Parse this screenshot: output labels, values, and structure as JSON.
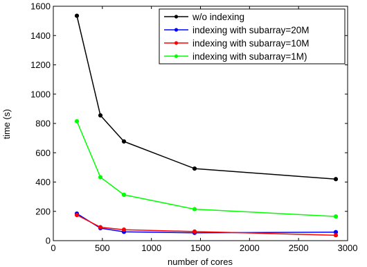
{
  "chart_data": {
    "type": "line",
    "xlabel": "number of cores",
    "ylabel": "time (s)",
    "xlim": [
      0,
      3000
    ],
    "ylim": [
      0,
      1600
    ],
    "xticks": [
      0,
      500,
      1000,
      1500,
      2000,
      2500,
      3000
    ],
    "yticks": [
      0,
      200,
      400,
      600,
      800,
      1000,
      1200,
      1400,
      1600
    ],
    "grid": false,
    "legend_position": "top-right",
    "x": [
      240,
      480,
      720,
      1440,
      2880
    ],
    "series": [
      {
        "name": "w/o indexing",
        "color": "#000000",
        "values": [
          1535,
          855,
          677,
          492,
          420
        ]
      },
      {
        "name": "indexing with subarray=20M",
        "color": "#0000ff",
        "values": [
          185,
          85,
          60,
          53,
          58
        ]
      },
      {
        "name": "indexing with subarray=10M",
        "color": "#ff0000",
        "values": [
          175,
          92,
          75,
          62,
          37
        ]
      },
      {
        "name": "indexing with subarray=1M)",
        "color": "#00ff00",
        "values": [
          815,
          433,
          313,
          215,
          165
        ]
      }
    ]
  }
}
